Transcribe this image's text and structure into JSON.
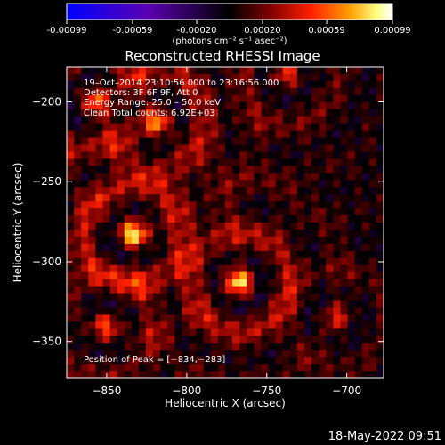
{
  "colorbar": {
    "ticks": [
      "-0.00099",
      "-0.00059",
      "-0.00020",
      "0.00020",
      "0.00059",
      "0.00099"
    ],
    "tick_values": [
      -0.00099,
      -0.00059,
      -0.0002,
      0.0002,
      0.00059,
      0.00099
    ],
    "range": [
      -0.00099,
      0.00099
    ],
    "units": "(photons cm⁻² s⁻¹ asec⁻²)",
    "colors": [
      "#0000ff",
      "#5a00b0",
      "#000000",
      "#7a0000",
      "#ff2000",
      "#ffa000",
      "#ffff80",
      "#ffffff"
    ]
  },
  "chart_data": {
    "type": "heatmap",
    "title": "Reconstructed RHESSI Image",
    "xlabel": "Heliocentric X (arcsec)",
    "ylabel": "Heliocentric Y (arcsec)",
    "xlim": [
      -875,
      -677
    ],
    "ylim": [
      -373,
      -178
    ],
    "xticks": [
      -850,
      -800,
      -750,
      -700
    ],
    "yticks": [
      -200,
      -250,
      -300,
      -350
    ],
    "xtick_labels": [
      "−850",
      "−800",
      "−750",
      "−700"
    ],
    "ytick_labels": [
      "−200",
      "−250",
      "−300",
      "−350"
    ],
    "annotations": [
      "19–Oct–2014 23:10:56.000 to 23:16:56.000",
      "Detectors: 3F 6F 9F, Att 0",
      "Energy Range: 25.0 – 50.0 keV",
      "Clean    Total counts: 6.92E+03"
    ],
    "peak_label": "Position of Peak = [−834,−283]",
    "peak": [
      -834,
      -283
    ],
    "sources": [
      {
        "x": -834,
        "y": -283,
        "amp": 1.0
      },
      {
        "x": -767,
        "y": -313,
        "amp": 0.95
      },
      {
        "x": -818,
        "y": -212,
        "amp": 0.75
      },
      {
        "x": -858,
        "y": -200,
        "amp": 0.65
      },
      {
        "x": -737,
        "y": -183,
        "amp": 0.55
      },
      {
        "x": -706,
        "y": -335,
        "amp": 0.4
      },
      {
        "x": -850,
        "y": -340,
        "amp": 0.55
      }
    ],
    "colorbar_range": [
      -0.00099,
      0.00099
    ]
  },
  "footer": {
    "timestamp": "18-May-2022 09:51"
  }
}
